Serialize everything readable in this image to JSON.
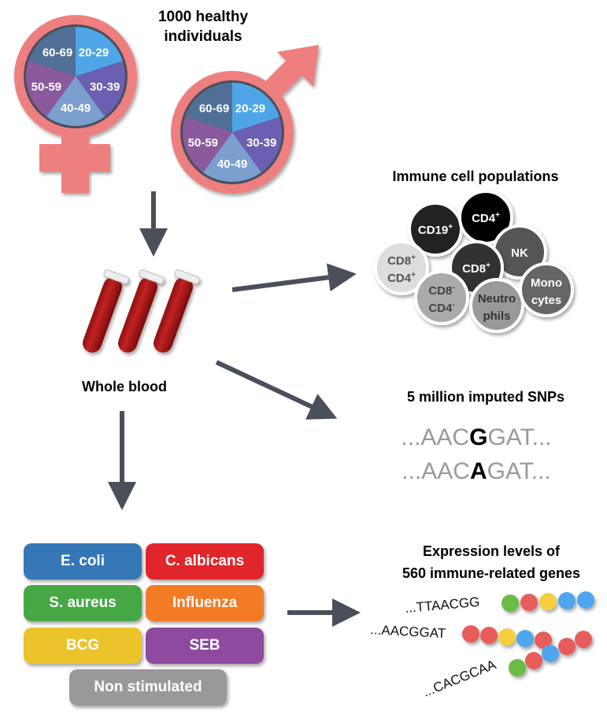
{
  "title": [
    "1000 healthy",
    "individuals"
  ],
  "age_groups": [
    "20-29",
    "30-39",
    "40-49",
    "50-59",
    "60-69"
  ],
  "age_colors": [
    "#4fa6e6",
    "#6a5fb0",
    "#7b9fcf",
    "#8a5a9c",
    "#4f6f96"
  ],
  "symbol_color": "#ee7f7f",
  "blood_label": "Whole blood",
  "immune_title": "Immune cell populations",
  "cells": [
    {
      "l1": "CD19",
      "s1": "+",
      "l2": "",
      "s2": "",
      "fill": "#222222",
      "text": "#ffffff"
    },
    {
      "l1": "CD4",
      "s1": "+",
      "l2": "",
      "s2": "",
      "fill": "#000000",
      "text": "#ffffff"
    },
    {
      "l1": "NK",
      "s1": "",
      "l2": "",
      "s2": "",
      "fill": "#555555",
      "text": "#ffffff"
    },
    {
      "l1": "CD8",
      "s1": "+",
      "l2": "",
      "s2": "",
      "fill": "#333333",
      "text": "#ffffff"
    },
    {
      "l1": "CD8",
      "s1": "+",
      "l2": "CD4",
      "s2": "+",
      "fill": "#dddddd",
      "text": "#555555"
    },
    {
      "l1": "CD8",
      "s1": "-",
      "l2": "CD4",
      "s2": "-",
      "fill": "#aaaaaa",
      "text": "#444444"
    },
    {
      "l1": "Neutro",
      "s1": "",
      "l2": "phils",
      "s2": "",
      "fill": "#999999",
      "text": "#333333"
    },
    {
      "l1": "Mono",
      "s1": "",
      "l2": "cytes",
      "s2": "",
      "fill": "#666666",
      "text": "#ffffff"
    }
  ],
  "snp_title": "5 million imputed SNPs",
  "snps": [
    {
      "pre": "...AAC",
      "alt": "G",
      "post": "GAT..."
    },
    {
      "pre": "...AAC",
      "alt": "A",
      "post": "GAT..."
    }
  ],
  "stimuli": [
    {
      "label": "E. coli",
      "color": "#3577b5"
    },
    {
      "label": "C. albicans",
      "color": "#e0262b"
    },
    {
      "label": "S. aureus",
      "color": "#45a845"
    },
    {
      "label": "Influenza",
      "color": "#f47b25"
    },
    {
      "label": "BCG",
      "color": "#ebc42c"
    },
    {
      "label": "SEB",
      "color": "#8e4a9f"
    },
    {
      "label": "Non stimulated",
      "color": "#999999"
    }
  ],
  "expr_title": [
    "Expression levels of",
    "560 immune-related genes"
  ],
  "genes": [
    {
      "seq": "...TTAACGG",
      "beads": [
        "#6cbb45",
        "#e85c5c",
        "#f5cf3c",
        "#4fa6ee",
        "#4fa6ee"
      ]
    },
    {
      "seq": "...AACGGAT",
      "beads": [
        "#e85c5c",
        "#e85c5c",
        "#f5cf3c",
        "#4fa6ee",
        "#e85c5c"
      ]
    },
    {
      "seq": "...CACGCAA",
      "beads": [
        "#6cbb45",
        "#e85c5c",
        "#4fa6ee",
        "#e85c5c",
        "#e85c5c"
      ]
    }
  ]
}
